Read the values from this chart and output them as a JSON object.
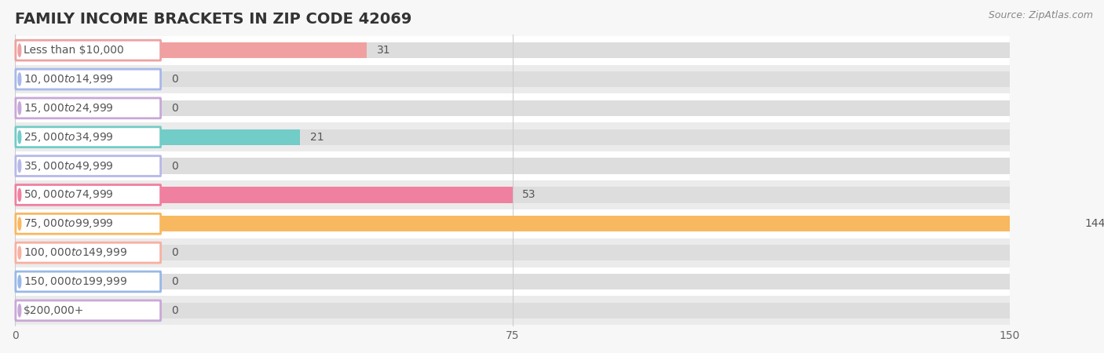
{
  "title": "FAMILY INCOME BRACKETS IN ZIP CODE 42069",
  "source": "Source: ZipAtlas.com",
  "categories": [
    "Less than $10,000",
    "$10,000 to $14,999",
    "$15,000 to $24,999",
    "$25,000 to $34,999",
    "$35,000 to $49,999",
    "$50,000 to $74,999",
    "$75,000 to $99,999",
    "$100,000 to $149,999",
    "$150,000 to $199,999",
    "$200,000+"
  ],
  "values": [
    31,
    0,
    0,
    21,
    0,
    53,
    144,
    0,
    0,
    0
  ],
  "bar_colors": [
    "#f0a0a0",
    "#a8b8e8",
    "#c8a8d8",
    "#72ccc8",
    "#b8b8e8",
    "#f080a0",
    "#f8b860",
    "#f8b0a0",
    "#98b8e8",
    "#c8a8d8"
  ],
  "xlim": [
    0,
    150
  ],
  "xticks": [
    0,
    75,
    150
  ],
  "row_colors": [
    "#ffffff",
    "#ebebeb"
  ],
  "bar_bg_color": "#dddddd",
  "title_fontsize": 14,
  "label_fontsize": 10,
  "value_fontsize": 10,
  "source_fontsize": 9
}
